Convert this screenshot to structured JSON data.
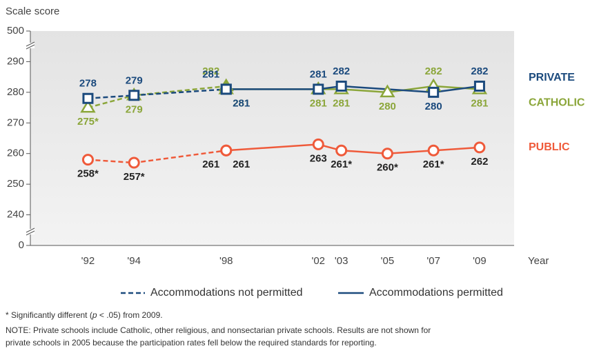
{
  "chart_data": {
    "type": "line",
    "y_axis_label": "Scale score",
    "x_axis_label": "Year",
    "ylim": [
      230,
      300
    ],
    "yticks": [
      240,
      250,
      260,
      270,
      280,
      290
    ],
    "y_break_labels": {
      "top": 500,
      "bottom": 0
    },
    "xlim": [
      1989.5,
      2010.5
    ],
    "xticks": [
      {
        "value": 1992,
        "label": "'92"
      },
      {
        "value": 1994,
        "label": "'94"
      },
      {
        "value": 1998,
        "label": "'98"
      },
      {
        "value": 2002,
        "label": "'02"
      },
      {
        "value": 2003,
        "label": "'03"
      },
      {
        "value": 2005,
        "label": "'05"
      },
      {
        "value": 2007,
        "label": "'07"
      },
      {
        "value": 2009,
        "label": "'09"
      }
    ],
    "line_styles": {
      "not_permitted": "Accommodations not permitted",
      "permitted": "Accommodations permitted"
    },
    "series": [
      {
        "name": "PRIVATE",
        "color": "#1b4a7d",
        "label_color": "#1b4a7d",
        "marker": "square",
        "x_not_permitted": [
          1992,
          1994,
          1998
        ],
        "not_permitted": [
          278,
          279,
          281
        ],
        "value_labels_not_permitted": [
          "278",
          "279",
          "281"
        ],
        "x_permitted": [
          1998,
          2002,
          2003,
          2007,
          2009
        ],
        "permitted": [
          281,
          281,
          282,
          280,
          282
        ],
        "value_labels_permitted": [
          "281",
          "281",
          "282",
          "280",
          "282"
        ]
      },
      {
        "name": "CATHOLIC",
        "color": "#8ba63a",
        "label_color": "#8ba63a",
        "marker": "triangle",
        "x_not_permitted": [
          1992,
          1994,
          1998
        ],
        "not_permitted": [
          275,
          279,
          282
        ],
        "value_labels_not_permitted": [
          "275*",
          "279",
          "282"
        ],
        "x_permitted": [
          1998,
          2002,
          2003,
          2005,
          2007,
          2009
        ],
        "permitted": [
          281,
          281,
          281,
          280,
          282,
          281
        ],
        "value_labels_permitted": [
          "281",
          "281",
          "281",
          "280",
          "282",
          "281"
        ]
      },
      {
        "name": "PUBLIC",
        "color": "#ef5a3a",
        "label_color": "#222222",
        "marker": "circle",
        "x_not_permitted": [
          1992,
          1994,
          1998
        ],
        "not_permitted": [
          258,
          257,
          261
        ],
        "value_labels_not_permitted": [
          "258*",
          "257*",
          "261"
        ],
        "x_permitted": [
          1998,
          2002,
          2003,
          2005,
          2007,
          2009
        ],
        "permitted": [
          261,
          263,
          261,
          260,
          261,
          262
        ],
        "value_labels_permitted": [
          "261",
          "263",
          "261*",
          "260*",
          "261*",
          "262"
        ]
      }
    ],
    "note_significance": [
      "* Significantly different (",
      "p",
      " < .05) from 2009."
    ],
    "note": "NOTE: Private schools include Catholic, other religious, and nonsectarian private schools. Results are not shown for",
    "note_cont": "private schools in 2005 because the participation rates fell below the required standards for reporting."
  }
}
